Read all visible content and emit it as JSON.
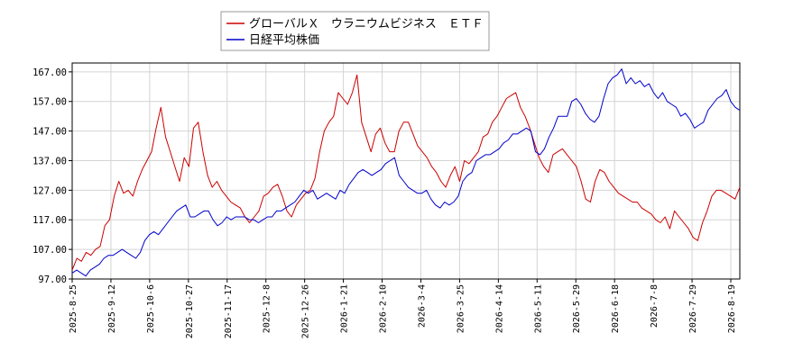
{
  "chart_data": {
    "type": "line",
    "ylim": [
      97,
      170
    ],
    "yticks": [
      "97.00",
      "107.00",
      "117.00",
      "127.00",
      "137.00",
      "147.00",
      "157.00",
      "167.00"
    ],
    "xticks": [
      "2025-8-25",
      "2025-9-12",
      "2025-10-6",
      "2025-10-27",
      "2025-11-17",
      "2025-12-8",
      "2025-12-26",
      "2026-1-21",
      "2026-2-10",
      "2026-3-4",
      "2026-3-25",
      "2026-4-14",
      "2026-5-11",
      "2026-5-29",
      "2026-6-18",
      "2026-7-8",
      "2026-7-29",
      "2026-8-19"
    ],
    "grid": true,
    "legend_position": "top-center",
    "series": [
      {
        "name": "グローバルＸ　ウラニウムビジネス　ＥＴＦ",
        "color": "#cc0000",
        "values": [
          100,
          104,
          103,
          106,
          105,
          107,
          108,
          115,
          117,
          125,
          130,
          126,
          127,
          125,
          130,
          134,
          137,
          140,
          148,
          155,
          145,
          140,
          135,
          130,
          138,
          135,
          148,
          150,
          140,
          132,
          128,
          130,
          127,
          125,
          123,
          122,
          121,
          118,
          116,
          118,
          120,
          125,
          126,
          128,
          129,
          125,
          120,
          118,
          122,
          124,
          126,
          127,
          131,
          140,
          147,
          150,
          152,
          160,
          158,
          156,
          160,
          166,
          150,
          145,
          140,
          146,
          148,
          143,
          140,
          140,
          147,
          150,
          150,
          146,
          142,
          140,
          138,
          135,
          133,
          130,
          128,
          132,
          135,
          130,
          137,
          136,
          138,
          140,
          145,
          146,
          150,
          152,
          155,
          158,
          159,
          160,
          155,
          152,
          148,
          143,
          138,
          135,
          133,
          139,
          140,
          141,
          139,
          137,
          135,
          130,
          124,
          123,
          130,
          134,
          133,
          130,
          128,
          126,
          125,
          124,
          123,
          123,
          121,
          120,
          119,
          117,
          116,
          118,
          114,
          120,
          118,
          116,
          114,
          111,
          110,
          116,
          120,
          125,
          127,
          127,
          126,
          125,
          124,
          128
        ]
      },
      {
        "name": "日経平均株価",
        "color": "#0000cc",
        "values": [
          99,
          100,
          99,
          98,
          100,
          101,
          102,
          104,
          105,
          105,
          106,
          107,
          106,
          105,
          104,
          106,
          110,
          112,
          113,
          112,
          114,
          116,
          118,
          120,
          121,
          122,
          118,
          118,
          119,
          120,
          120,
          117,
          115,
          116,
          118,
          117,
          118,
          118,
          118,
          117,
          117,
          116,
          117,
          118,
          118,
          120,
          120,
          121,
          122,
          123,
          125,
          127,
          126,
          127,
          124,
          125,
          126,
          125,
          124,
          127,
          126,
          129,
          131,
          133,
          134,
          133,
          132,
          133,
          134,
          136,
          137,
          138,
          132,
          130,
          128,
          127,
          126,
          126,
          127,
          124,
          122,
          121,
          123,
          122,
          123,
          125,
          130,
          132,
          133,
          137,
          138,
          139,
          139,
          140,
          141,
          143,
          144,
          146,
          146,
          147,
          148,
          147,
          140,
          139,
          141,
          145,
          148,
          152,
          152,
          152,
          157,
          158,
          156,
          153,
          151,
          150,
          152,
          158,
          163,
          165,
          166,
          168,
          163,
          165,
          163,
          164,
          162,
          163,
          160,
          158,
          160,
          157,
          156,
          155,
          152,
          153,
          151,
          148,
          149,
          150,
          154,
          156,
          158,
          159,
          161,
          157,
          155,
          154
        ]
      }
    ]
  }
}
